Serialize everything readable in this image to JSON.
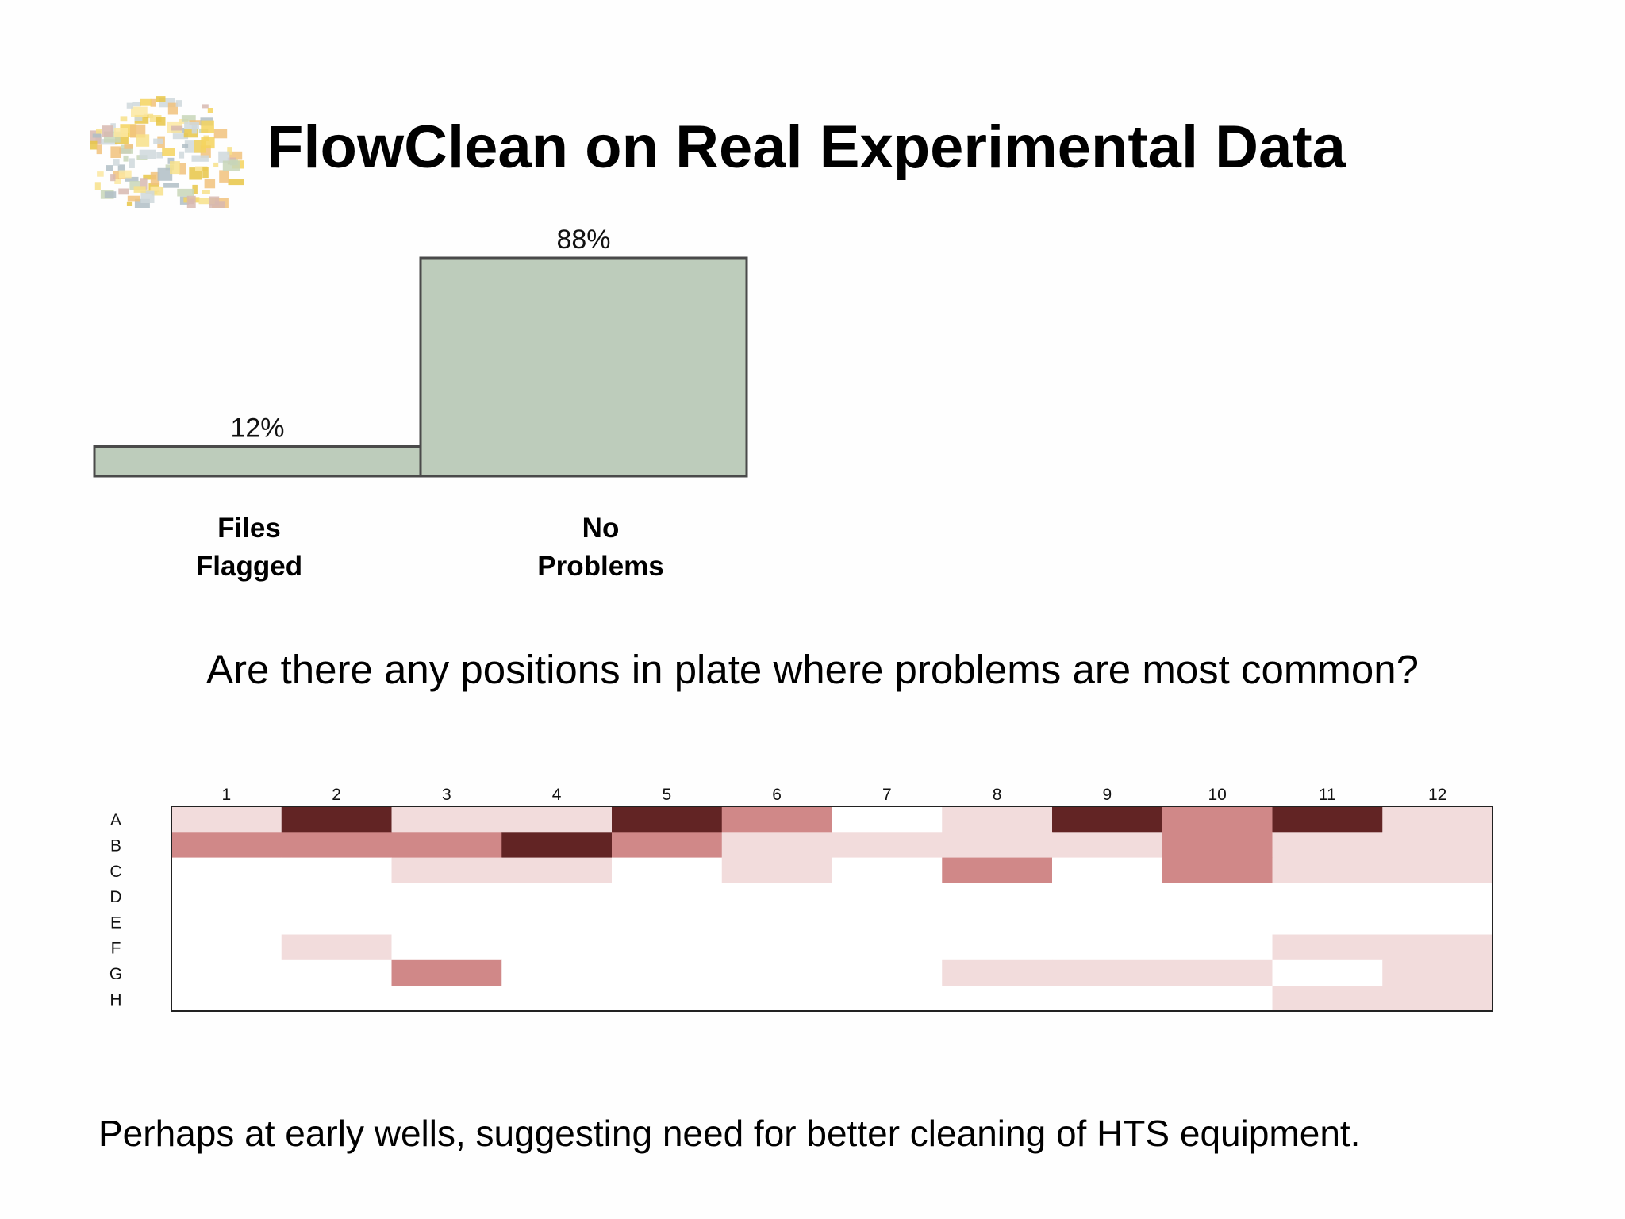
{
  "slide": {
    "title": "FlowClean on Real Experimental Data",
    "question": "Are there any positions in plate where problems are most common?",
    "caption": "Perhaps at early wells, suggesting need for better cleaning of HTS equipment."
  },
  "colors": {
    "bar_fill": "#bdccbb",
    "bar_stroke": "#4a4a4a",
    "heat_levels": [
      "#ffffff",
      "#f2dcdc",
      "#d08888",
      "#622424"
    ]
  },
  "icons": {
    "logo": "colorful-pixel-cluster-logo"
  },
  "chart_data": [
    {
      "type": "bar",
      "title": "",
      "xlabel": "",
      "ylabel": "",
      "categories": [
        "Files\nFlagged",
        "No\nProblems"
      ],
      "values": [
        12,
        88
      ],
      "value_labels": [
        "12%",
        "88%"
      ],
      "ylim": [
        0,
        88
      ],
      "grid": false
    },
    {
      "type": "heatmap",
      "title": "",
      "x": [
        "1",
        "2",
        "3",
        "4",
        "5",
        "6",
        "7",
        "8",
        "9",
        "10",
        "11",
        "12"
      ],
      "y": [
        "A",
        "B",
        "C",
        "D",
        "E",
        "F",
        "G",
        "H"
      ],
      "value_scale": "0 = no problem, 3 = most frequent",
      "values": [
        [
          1,
          3,
          1,
          1,
          3,
          2,
          0,
          1,
          3,
          2,
          3,
          1
        ],
        [
          2,
          2,
          2,
          3,
          2,
          1,
          1,
          1,
          1,
          2,
          1,
          1
        ],
        [
          0,
          0,
          1,
          1,
          0,
          1,
          0,
          2,
          0,
          2,
          1,
          1
        ],
        [
          0,
          0,
          0,
          0,
          0,
          0,
          0,
          0,
          0,
          0,
          0,
          0
        ],
        [
          0,
          0,
          0,
          0,
          0,
          0,
          0,
          0,
          0,
          0,
          0,
          0
        ],
        [
          0,
          1,
          0,
          0,
          0,
          0,
          0,
          0,
          0,
          0,
          1,
          1
        ],
        [
          0,
          0,
          2,
          0,
          0,
          0,
          0,
          1,
          1,
          1,
          0,
          1
        ],
        [
          0,
          0,
          0,
          0,
          0,
          0,
          0,
          0,
          0,
          0,
          1,
          1
        ]
      ],
      "grid": false
    }
  ]
}
